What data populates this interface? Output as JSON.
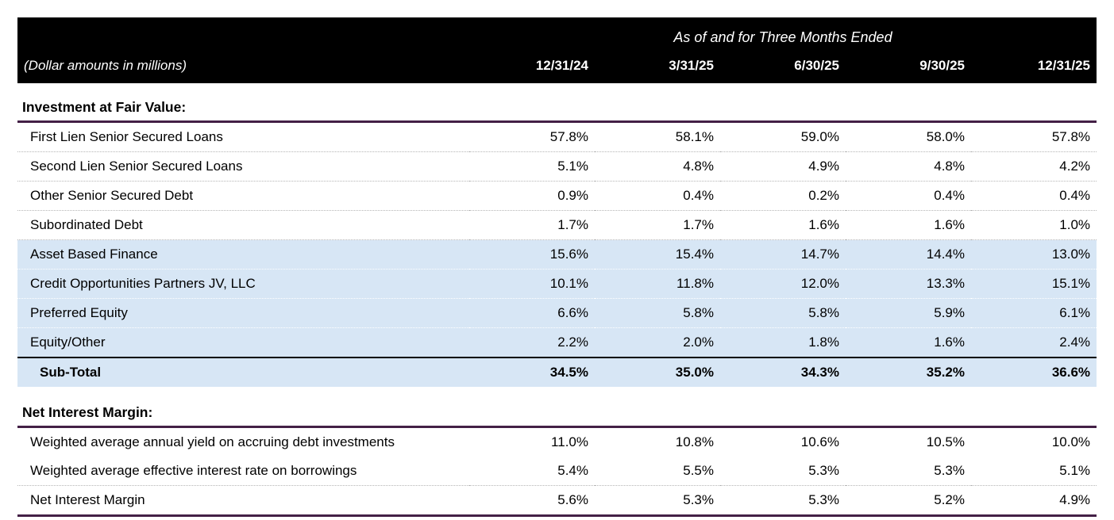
{
  "colors": {
    "header_bg": "#000000",
    "header_text": "#ffffff",
    "accent_line": "#432046",
    "row_shade": "#d7e6f5",
    "divider_dotted": "#b5b5b5",
    "subtotal_rule": "#000000"
  },
  "header": {
    "dollar_note": "(Dollar amounts in millions)",
    "period_title": "As of and for Three Months Ended",
    "columns": [
      "12/31/24",
      "3/31/25",
      "6/30/25",
      "9/30/25",
      "12/31/25"
    ]
  },
  "sections": [
    {
      "title": "Investment at Fair Value:",
      "rows": [
        {
          "label": "First Lien Senior Secured Loans",
          "values": [
            "57.8%",
            "58.1%",
            "59.0%",
            "58.0%",
            "57.8%"
          ],
          "shaded": false,
          "bold": false,
          "separator": "dotted"
        },
        {
          "label": "Second Lien Senior Secured Loans",
          "values": [
            "5.1%",
            "4.8%",
            "4.9%",
            "4.8%",
            "4.2%"
          ],
          "shaded": false,
          "bold": false,
          "separator": "dotted"
        },
        {
          "label": "Other Senior Secured Debt",
          "values": [
            "0.9%",
            "0.4%",
            "0.2%",
            "0.4%",
            "0.4%"
          ],
          "shaded": false,
          "bold": false,
          "separator": "dotted"
        },
        {
          "label": "Subordinated Debt",
          "values": [
            "1.7%",
            "1.7%",
            "1.6%",
            "1.6%",
            "1.0%"
          ],
          "shaded": false,
          "bold": false,
          "separator": "dotted"
        },
        {
          "label": "Asset Based Finance",
          "values": [
            "15.6%",
            "15.4%",
            "14.7%",
            "14.4%",
            "13.0%"
          ],
          "shaded": true,
          "bold": false,
          "separator": "dotted"
        },
        {
          "label": "Credit Opportunities Partners JV, LLC",
          "values": [
            "10.1%",
            "11.8%",
            "12.0%",
            "13.3%",
            "15.1%"
          ],
          "shaded": true,
          "bold": false,
          "separator": "dotted"
        },
        {
          "label": "Preferred Equity",
          "values": [
            "6.6%",
            "5.8%",
            "5.8%",
            "5.9%",
            "6.1%"
          ],
          "shaded": true,
          "bold": false,
          "separator": "dotted"
        },
        {
          "label": "Equity/Other",
          "values": [
            "2.2%",
            "2.0%",
            "1.8%",
            "1.6%",
            "2.4%"
          ],
          "shaded": true,
          "bold": false,
          "separator": "none"
        },
        {
          "label": "Sub-Total",
          "values": [
            "34.5%",
            "35.0%",
            "34.3%",
            "35.2%",
            "36.6%"
          ],
          "shaded": true,
          "bold": true,
          "rule_above": true,
          "separator": "none"
        }
      ]
    },
    {
      "title": "Net Interest Margin:",
      "rows": [
        {
          "label": "Weighted average annual yield on accruing debt investments",
          "values": [
            "11.0%",
            "10.8%",
            "10.6%",
            "10.5%",
            "10.0%"
          ],
          "shaded": false,
          "bold": false,
          "separator": "none"
        },
        {
          "label": "Weighted average effective interest rate on borrowings",
          "values": [
            "5.4%",
            "5.5%",
            "5.3%",
            "5.3%",
            "5.1%"
          ],
          "shaded": false,
          "bold": false,
          "separator": "dotted"
        },
        {
          "label": "Net Interest Margin",
          "values": [
            "5.6%",
            "5.3%",
            "5.3%",
            "5.2%",
            "4.9%"
          ],
          "shaded": false,
          "bold": false,
          "separator": "none",
          "section_end": true
        }
      ]
    }
  ]
}
